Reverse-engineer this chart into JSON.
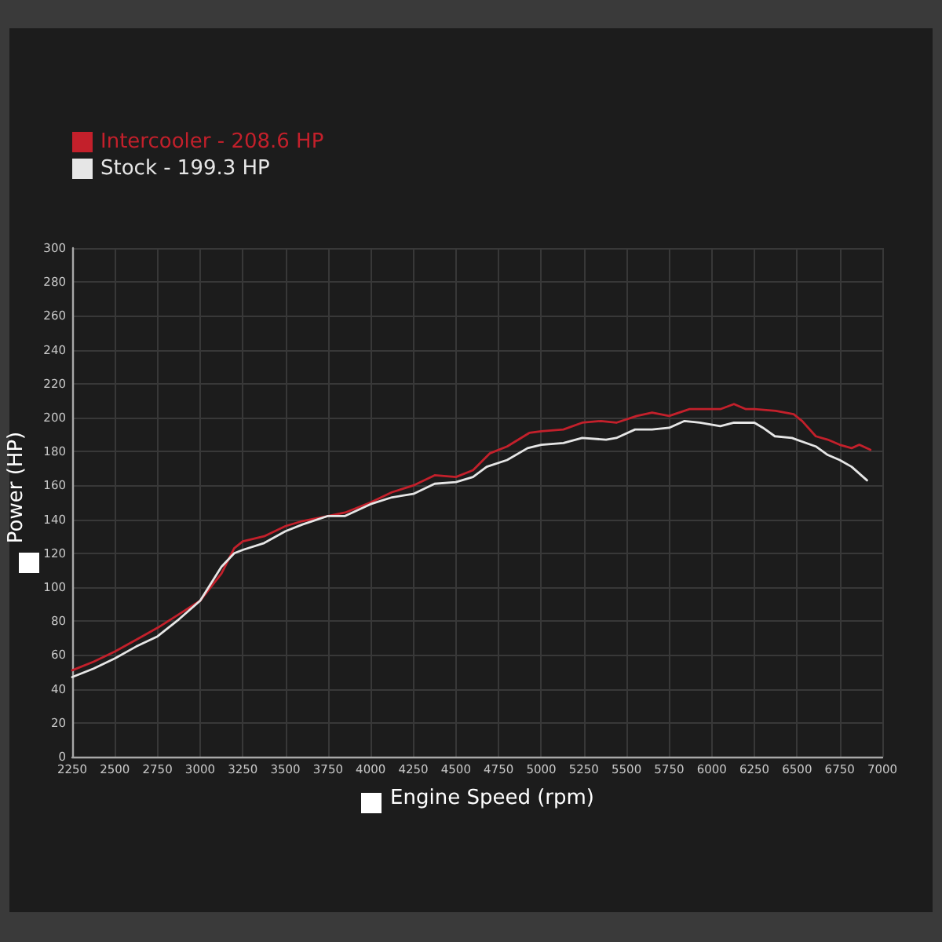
{
  "chart_data": {
    "type": "line",
    "xlabel": "Engine Speed (rpm)",
    "ylabel": "Power (HP)",
    "xlim": [
      2250,
      7000
    ],
    "xticks": [
      2250,
      2500,
      2750,
      3000,
      3250,
      3500,
      3750,
      4000,
      4250,
      4500,
      4750,
      5000,
      5250,
      5500,
      5750,
      6000,
      6250,
      6500,
      6750,
      7000
    ],
    "ylim": [
      0,
      300
    ],
    "yticks": [
      0,
      20,
      40,
      60,
      80,
      100,
      120,
      140,
      160,
      180,
      200,
      220,
      240,
      260,
      280,
      300
    ],
    "grid": true,
    "legend": "top left",
    "marker": "none",
    "line_style": "solid",
    "series": [
      {
        "name": "Intercooler - 208.6 HP",
        "color": "#c3202b",
        "x": [
          2250,
          2375,
          2500,
          2625,
          2750,
          2875,
          3000,
          3125,
          3200,
          3250,
          3375,
          3500,
          3600,
          3750,
          3850,
          4000,
          4125,
          4250,
          4375,
          4500,
          4600,
          4700,
          4800,
          4930,
          5000,
          5130,
          5240,
          5350,
          5440,
          5560,
          5650,
          5750,
          5870,
          6000,
          6050,
          6130,
          6200,
          6250,
          6375,
          6480,
          6530,
          6610,
          6680,
          6750,
          6820,
          6865,
          6930
        ],
        "values": [
          51,
          56,
          62,
          69,
          76,
          84,
          92,
          108,
          123,
          127,
          130,
          136,
          139,
          142,
          144,
          150,
          156,
          160,
          166,
          165,
          169,
          179,
          183,
          191,
          192,
          193,
          197,
          198,
          197,
          201,
          203,
          201,
          205,
          205,
          205,
          208,
          205,
          205,
          204,
          202,
          198,
          189,
          187,
          184,
          182,
          184,
          181
        ]
      },
      {
        "name": "Stock - 199.3 HP",
        "color": "#e6e6e6",
        "x": [
          2250,
          2375,
          2500,
          2625,
          2750,
          2875,
          3000,
          3125,
          3200,
          3250,
          3375,
          3500,
          3600,
          3750,
          3850,
          4000,
          4125,
          4250,
          4375,
          4500,
          4600,
          4680,
          4800,
          4920,
          5000,
          5130,
          5240,
          5380,
          5440,
          5550,
          5650,
          5750,
          5840,
          5930,
          6050,
          6130,
          6250,
          6300,
          6370,
          6470,
          6610,
          6680,
          6750,
          6820,
          6910
        ],
        "values": [
          47,
          52,
          58,
          65,
          71,
          81,
          92,
          112,
          120,
          122,
          126,
          133,
          137,
          142,
          142,
          149,
          153,
          155,
          161,
          162,
          165,
          171,
          175,
          182,
          184,
          185,
          188,
          187,
          188,
          193,
          193,
          194,
          198,
          197,
          195,
          197,
          197,
          194,
          189,
          188,
          183,
          178,
          175,
          171,
          163
        ]
      }
    ]
  }
}
